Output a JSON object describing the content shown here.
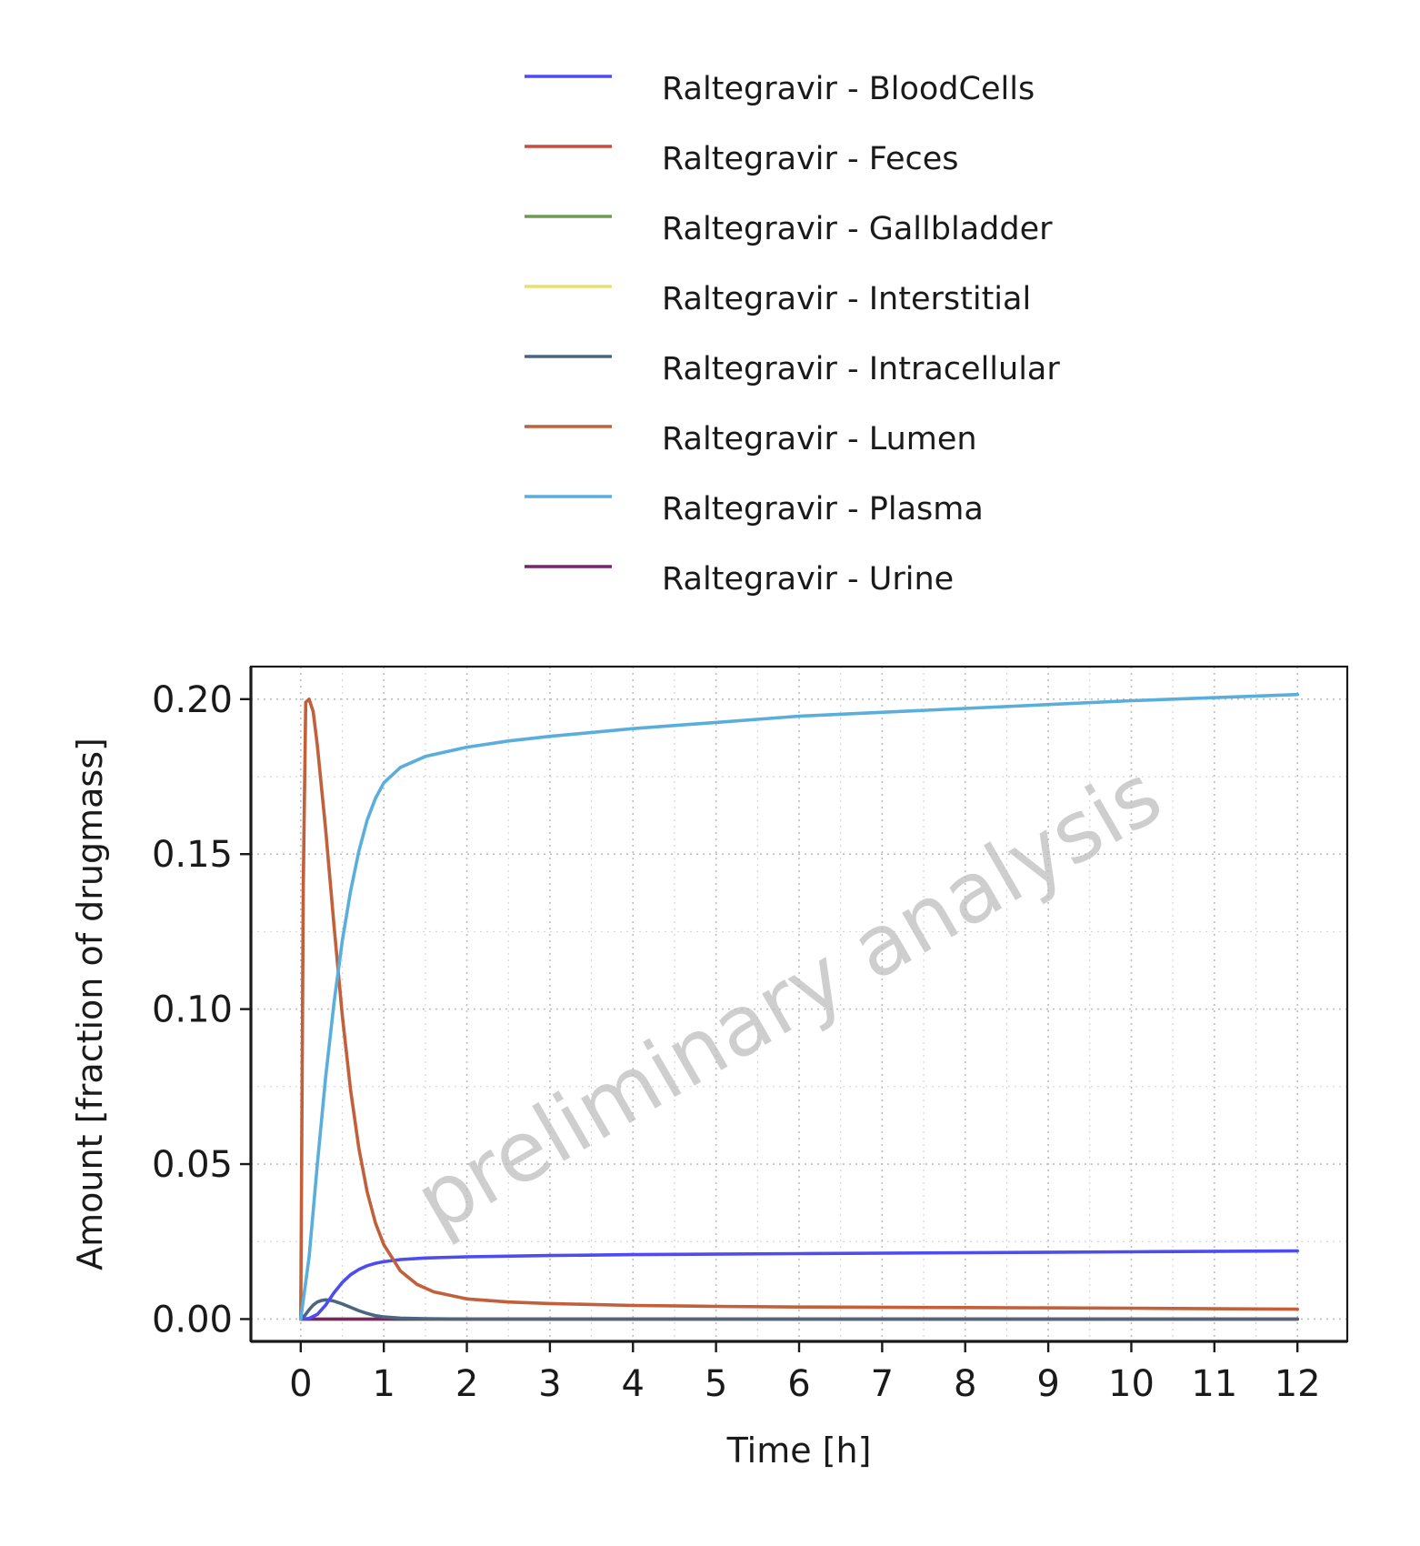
{
  "chart_data": {
    "type": "line",
    "title": "",
    "xlabel": "Time [h]",
    "ylabel": "Amount [fraction of drugmass]",
    "xlim": [
      -0.6,
      12.6
    ],
    "ylim": [
      -0.0072,
      0.2105
    ],
    "x_ticks": [
      0,
      1,
      2,
      3,
      4,
      5,
      6,
      7,
      8,
      9,
      10,
      11,
      12
    ],
    "x_tick_labels": [
      "0",
      "1",
      "2",
      "3",
      "4",
      "5",
      "6",
      "7",
      "8",
      "9",
      "10",
      "11",
      "12"
    ],
    "y_ticks": [
      0,
      0.05,
      0.1,
      0.15,
      0.2
    ],
    "y_tick_labels": [
      "0.00",
      "0.05",
      "0.10",
      "0.15",
      "0.20"
    ],
    "grid": true,
    "legend_position": "top",
    "watermark": "preliminary analysis",
    "series": [
      {
        "name": "Raltegravir - BloodCells",
        "color": "#4c4cf0",
        "x": [
          0,
          0.1,
          0.2,
          0.3,
          0.4,
          0.5,
          0.6,
          0.7,
          0.8,
          0.9,
          1.0,
          1.2,
          1.5,
          2,
          3,
          4,
          6,
          8,
          10,
          12
        ],
        "y": [
          0,
          0.0002,
          0.0015,
          0.0045,
          0.0085,
          0.0118,
          0.0143,
          0.016,
          0.0172,
          0.018,
          0.0185,
          0.0192,
          0.0197,
          0.0201,
          0.0205,
          0.0208,
          0.0211,
          0.0214,
          0.0217,
          0.022
        ]
      },
      {
        "name": "Raltegravir - Feces",
        "color": "#cc4c3b",
        "x": [
          0,
          12
        ],
        "y": [
          0,
          0
        ]
      },
      {
        "name": "Raltegravir - Gallbladder",
        "color": "#6f9a52",
        "x": [
          0,
          12
        ],
        "y": [
          0,
          0
        ]
      },
      {
        "name": "Raltegravir - Interstitial",
        "color": "#e8e070",
        "x": [
          0,
          12
        ],
        "y": [
          0,
          0
        ]
      },
      {
        "name": "Raltegravir - Intracellular",
        "color": "#4a6680",
        "x": [
          0,
          0.05,
          0.1,
          0.15,
          0.2,
          0.25,
          0.3,
          0.35,
          0.4,
          0.5,
          0.6,
          0.7,
          0.8,
          0.9,
          1.0,
          1.2,
          1.5,
          2,
          12
        ],
        "y": [
          0,
          0.0012,
          0.003,
          0.0045,
          0.0055,
          0.006,
          0.0062,
          0.0061,
          0.0058,
          0.0049,
          0.0038,
          0.0027,
          0.0018,
          0.0011,
          0.0007,
          0.0003,
          0.0001,
          0.0,
          0.0
        ]
      },
      {
        "name": "Raltegravir - Lumen",
        "color": "#c1603a",
        "x": [
          0,
          0.03,
          0.06,
          0.1,
          0.15,
          0.2,
          0.3,
          0.4,
          0.5,
          0.6,
          0.7,
          0.8,
          0.9,
          1.0,
          1.2,
          1.4,
          1.6,
          2,
          2.5,
          3,
          4,
          5,
          6,
          8,
          10,
          12
        ],
        "y": [
          0,
          0.14,
          0.199,
          0.2,
          0.196,
          0.185,
          0.158,
          0.127,
          0.098,
          0.074,
          0.055,
          0.041,
          0.031,
          0.024,
          0.0155,
          0.0112,
          0.0088,
          0.0065,
          0.0055,
          0.005,
          0.0044,
          0.0041,
          0.0039,
          0.0037,
          0.0035,
          0.0032
        ]
      },
      {
        "name": "Raltegravir - Plasma",
        "color": "#5aaedc",
        "x": [
          0,
          0.1,
          0.2,
          0.3,
          0.4,
          0.5,
          0.6,
          0.7,
          0.8,
          0.9,
          1.0,
          1.2,
          1.5,
          2,
          2.5,
          3,
          4,
          5,
          6,
          8,
          10,
          12
        ],
        "y": [
          0,
          0.02,
          0.05,
          0.078,
          0.102,
          0.122,
          0.138,
          0.151,
          0.161,
          0.168,
          0.173,
          0.178,
          0.1815,
          0.1845,
          0.1865,
          0.188,
          0.1905,
          0.1925,
          0.1945,
          0.197,
          0.1995,
          0.2015
        ]
      },
      {
        "name": "Raltegravir - Urine",
        "color": "#7a2470",
        "x": [
          0,
          12
        ],
        "y": [
          0,
          0
        ]
      }
    ]
  }
}
